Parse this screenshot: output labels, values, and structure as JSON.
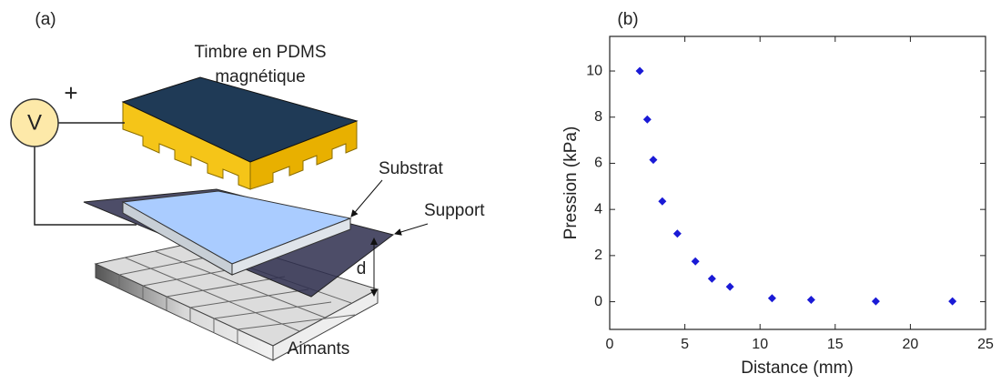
{
  "diagram": {
    "panel_label": "(a)",
    "stamp_label": [
      "Timbre en PDMS",
      "magnétique"
    ],
    "voltage": "V",
    "polarity": "+",
    "substrate_label": "Substrat",
    "support_label": "Support",
    "distance_label": "d",
    "magnets_label": "Aimants"
  },
  "chart_data": {
    "type": "scatter",
    "panel_label": "(b)",
    "x_label": "Distance (mm)",
    "y_label": "Pression (kPa)",
    "x": [
      2,
      2.5,
      2.9,
      3.5,
      4.5,
      5.7,
      6.8,
      8,
      10.8,
      13.4,
      17.7,
      22.8
    ],
    "values": [
      10,
      7.9,
      6.15,
      4.35,
      2.95,
      1.75,
      1.0,
      0.65,
      0.15,
      0.08,
      0.02,
      0.02
    ],
    "color": "#1a1ad6",
    "marker": "diamond",
    "xlim": [
      0,
      25
    ],
    "xticks": [
      0,
      5,
      10,
      15,
      20,
      25
    ],
    "ylim": [
      -1.2,
      11.5
    ],
    "yticks": [
      0,
      2,
      4,
      6,
      8,
      10
    ]
  }
}
